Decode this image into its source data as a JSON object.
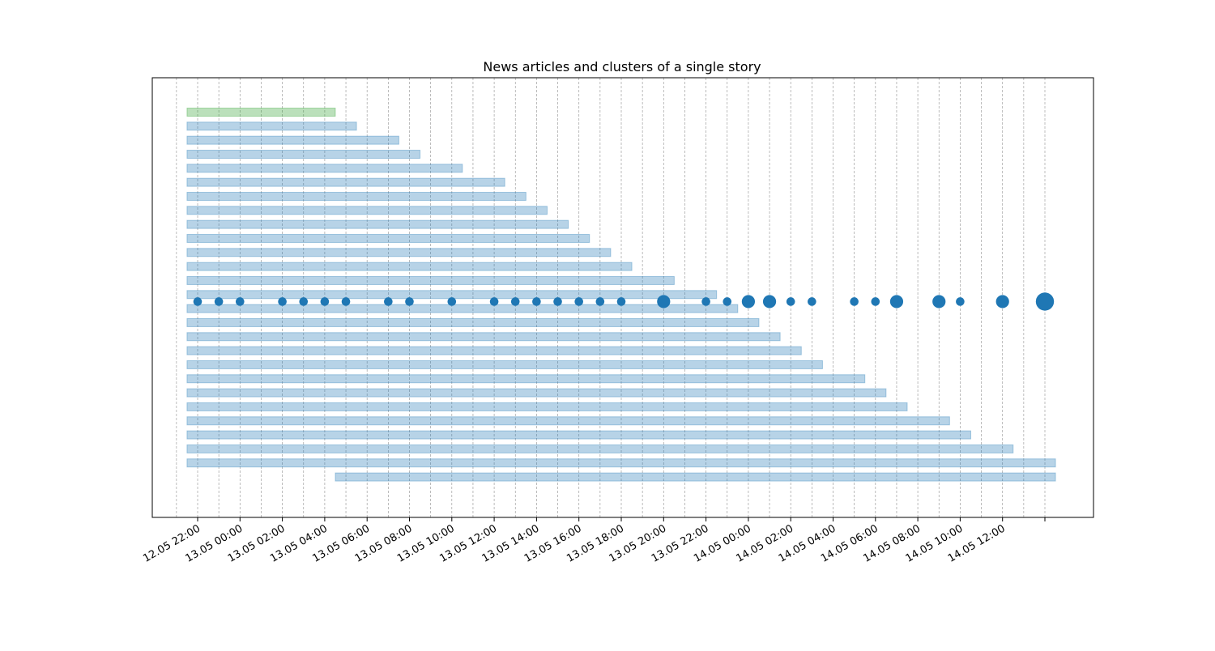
{
  "chart_data": {
    "type": "timeline",
    "title": "News articles and clusters of a single story",
    "xlabel": "",
    "ylabel": "",
    "x_unit": "hours",
    "x_ticks": [
      {
        "t": 0,
        "label": "12.05 22:00"
      },
      {
        "t": 2,
        "label": "13.05 00:00"
      },
      {
        "t": 4,
        "label": "13.05 02:00"
      },
      {
        "t": 6,
        "label": "13.05 04:00"
      },
      {
        "t": 8,
        "label": "13.05 06:00"
      },
      {
        "t": 10,
        "label": "13.05 08:00"
      },
      {
        "t": 12,
        "label": "13.05 10:00"
      },
      {
        "t": 14,
        "label": "13.05 12:00"
      },
      {
        "t": 16,
        "label": "13.05 14:00"
      },
      {
        "t": 18,
        "label": "13.05 16:00"
      },
      {
        "t": 20,
        "label": "13.05 18:00"
      },
      {
        "t": 22,
        "label": "13.05 20:00"
      },
      {
        "t": 24,
        "label": "13.05 22:00"
      },
      {
        "t": 26,
        "label": "14.05 00:00"
      },
      {
        "t": 28,
        "label": "14.05 02:00"
      },
      {
        "t": 30,
        "label": "14.05 04:00"
      },
      {
        "t": 32,
        "label": "14.05 06:00"
      },
      {
        "t": 34,
        "label": "14.05 08:00"
      },
      {
        "t": 36,
        "label": "14.05 10:00"
      },
      {
        "t": 38,
        "label": "14.05 12:00"
      },
      {
        "t": 40,
        "label": ""
      }
    ],
    "minor_gridlines": [
      -1,
      1,
      3,
      5,
      7,
      9,
      11,
      13,
      15,
      17,
      19,
      21,
      23,
      25,
      27,
      29,
      31,
      33,
      35,
      37,
      39
    ],
    "grid": "vertical dashed",
    "xlim": [
      -2.15,
      42.3
    ],
    "bars": [
      {
        "start": -0.5,
        "end": 6.5,
        "color": "#2ca02c"
      },
      {
        "start": -0.5,
        "end": 7.5,
        "color": "#1f77b4"
      },
      {
        "start": -0.5,
        "end": 9.5,
        "color": "#1f77b4"
      },
      {
        "start": -0.5,
        "end": 10.5,
        "color": "#1f77b4"
      },
      {
        "start": -0.5,
        "end": 12.5,
        "color": "#1f77b4"
      },
      {
        "start": -0.5,
        "end": 14.5,
        "color": "#1f77b4"
      },
      {
        "start": -0.5,
        "end": 15.5,
        "color": "#1f77b4"
      },
      {
        "start": -0.5,
        "end": 16.5,
        "color": "#1f77b4"
      },
      {
        "start": -0.5,
        "end": 17.5,
        "color": "#1f77b4"
      },
      {
        "start": -0.5,
        "end": 18.5,
        "color": "#1f77b4"
      },
      {
        "start": -0.5,
        "end": 19.5,
        "color": "#1f77b4"
      },
      {
        "start": -0.5,
        "end": 20.5,
        "color": "#1f77b4"
      },
      {
        "start": -0.5,
        "end": 22.5,
        "color": "#1f77b4"
      },
      {
        "start": -0.5,
        "end": 24.5,
        "color": "#1f77b4"
      },
      {
        "start": -0.5,
        "end": 25.5,
        "color": "#1f77b4"
      },
      {
        "start": -0.5,
        "end": 26.5,
        "color": "#1f77b4"
      },
      {
        "start": -0.5,
        "end": 27.5,
        "color": "#1f77b4"
      },
      {
        "start": -0.5,
        "end": 28.5,
        "color": "#1f77b4"
      },
      {
        "start": -0.5,
        "end": 29.5,
        "color": "#1f77b4"
      },
      {
        "start": -0.5,
        "end": 31.5,
        "color": "#1f77b4"
      },
      {
        "start": -0.5,
        "end": 32.5,
        "color": "#1f77b4"
      },
      {
        "start": -0.5,
        "end": 33.5,
        "color": "#1f77b4"
      },
      {
        "start": -0.5,
        "end": 35.5,
        "color": "#1f77b4"
      },
      {
        "start": -0.5,
        "end": 36.5,
        "color": "#1f77b4"
      },
      {
        "start": -0.5,
        "end": 38.5,
        "color": "#1f77b4"
      },
      {
        "start": -0.5,
        "end": 40.5,
        "color": "#1f77b4"
      },
      {
        "start": 6.5,
        "end": 40.5,
        "color": "#1f77b4"
      }
    ],
    "cluster_row": 13.5,
    "clusters": [
      {
        "t": 0,
        "size": 1
      },
      {
        "t": 1,
        "size": 1
      },
      {
        "t": 2,
        "size": 1
      },
      {
        "t": 4,
        "size": 1
      },
      {
        "t": 5,
        "size": 1
      },
      {
        "t": 6,
        "size": 1
      },
      {
        "t": 7,
        "size": 1
      },
      {
        "t": 9,
        "size": 1
      },
      {
        "t": 10,
        "size": 1
      },
      {
        "t": 12,
        "size": 1
      },
      {
        "t": 14,
        "size": 1
      },
      {
        "t": 15,
        "size": 1
      },
      {
        "t": 16,
        "size": 1
      },
      {
        "t": 17,
        "size": 1
      },
      {
        "t": 18,
        "size": 1
      },
      {
        "t": 19,
        "size": 1
      },
      {
        "t": 20,
        "size": 1
      },
      {
        "t": 22,
        "size": 2
      },
      {
        "t": 24,
        "size": 1
      },
      {
        "t": 25,
        "size": 1
      },
      {
        "t": 26,
        "size": 2
      },
      {
        "t": 27,
        "size": 2
      },
      {
        "t": 28,
        "size": 1
      },
      {
        "t": 29,
        "size": 1
      },
      {
        "t": 31,
        "size": 1
      },
      {
        "t": 32,
        "size": 1
      },
      {
        "t": 33,
        "size": 2
      },
      {
        "t": 35,
        "size": 2
      },
      {
        "t": 36,
        "size": 1
      },
      {
        "t": 38,
        "size": 2
      },
      {
        "t": 40,
        "size": 4
      }
    ],
    "colors": {
      "bar_fill": "#1f77b4",
      "first_bar": "#2ca02c",
      "cluster": "#1f77b4",
      "grid": "#a0a0a0",
      "axes": "#000000"
    }
  }
}
